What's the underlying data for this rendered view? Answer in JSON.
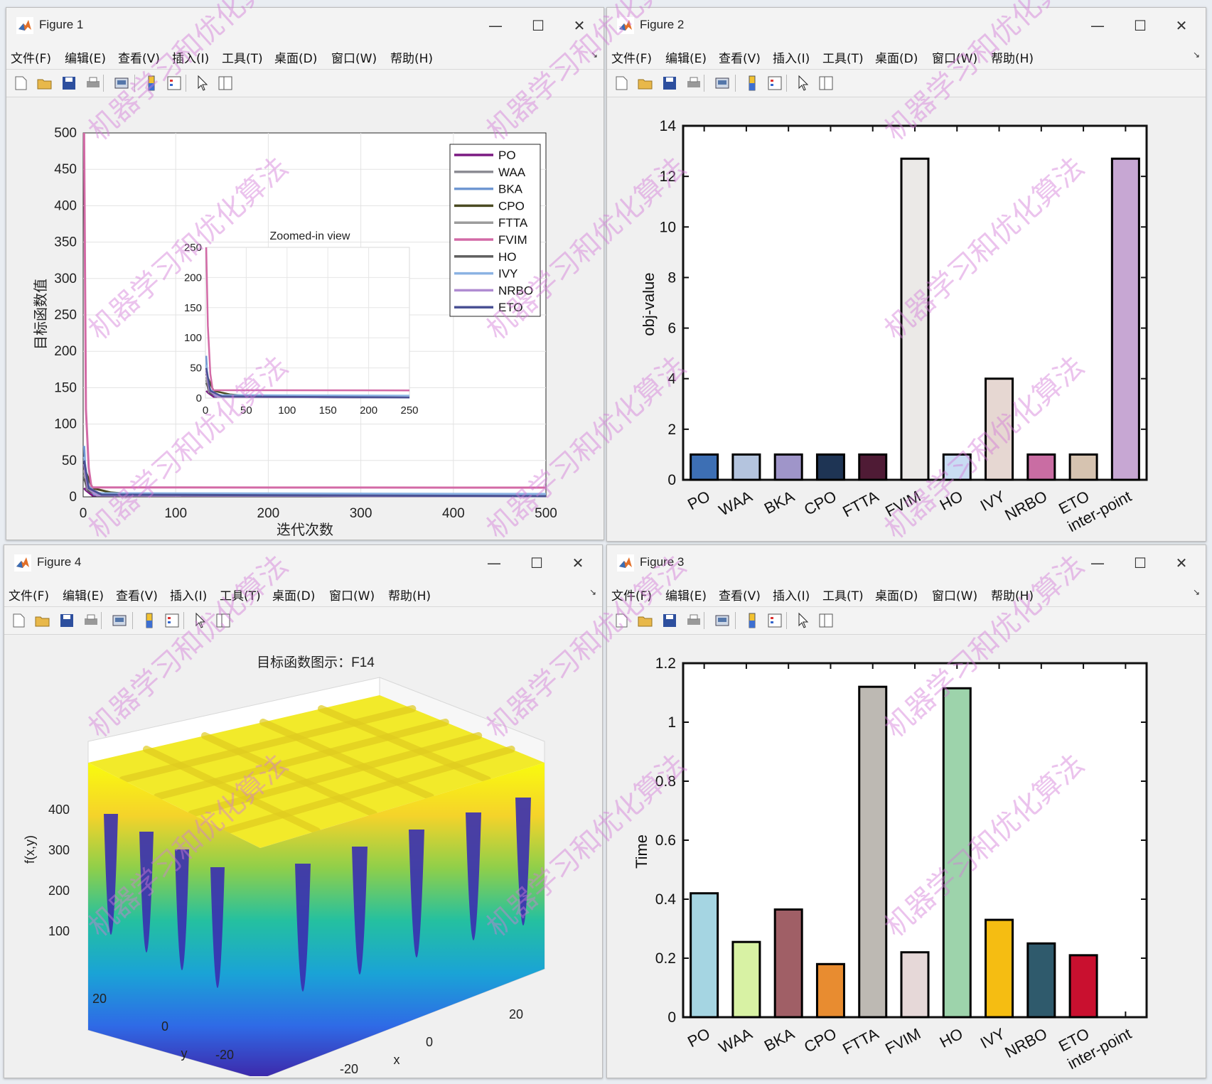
{
  "menu": [
    "文件(F)",
    "编辑(E)",
    "查看(V)",
    "插入(I)",
    "工具(T)",
    "桌面(D)",
    "窗口(W)",
    "帮助(H)"
  ],
  "window_controls": {
    "minimize": "—",
    "maximize": "☐",
    "close": "✕"
  },
  "watermark": "机器学习和优化算法",
  "fig1": {
    "title": "Figure 1",
    "chart_data": {
      "type": "line",
      "xlabel": "迭代次数",
      "ylabel": "目标函数值",
      "xlim": [
        0,
        500
      ],
      "ylim": [
        0,
        500
      ],
      "xticks": [
        "0",
        "100",
        "200",
        "300",
        "400",
        "500"
      ],
      "yticks": [
        "0",
        "50",
        "100",
        "150",
        "200",
        "250",
        "300",
        "350",
        "400",
        "450",
        "500"
      ],
      "grid": true,
      "legend_position": "top-right",
      "series": [
        {
          "name": "PO",
          "color": "#7b1a82",
          "points": [
            [
              1,
              12
            ],
            [
              3,
              9
            ],
            [
              10,
              2
            ],
            [
              500,
              1
            ]
          ]
        },
        {
          "name": "WAA",
          "color": "#8c8c93",
          "points": [
            [
              1,
              30
            ],
            [
              4,
              10
            ],
            [
              15,
              2
            ],
            [
              500,
              1
            ]
          ]
        },
        {
          "name": "BKA",
          "color": "#6f97d2",
          "points": [
            [
              1,
              70
            ],
            [
              3,
              20
            ],
            [
              12,
              3
            ],
            [
              500,
              1
            ]
          ]
        },
        {
          "name": "CPO",
          "color": "#4a4a22",
          "points": [
            [
              1,
              40
            ],
            [
              10,
              12
            ],
            [
              30,
              6
            ],
            [
              60,
              3
            ],
            [
              500,
              1
            ]
          ]
        },
        {
          "name": "FTTA",
          "color": "#9c9c9c",
          "points": [
            [
              1,
              35
            ],
            [
              5,
              10
            ],
            [
              20,
              3
            ],
            [
              500,
              1
            ]
          ]
        },
        {
          "name": "FVIM",
          "color": "#d36aa6",
          "points": [
            [
              1,
              500
            ],
            [
              3,
              120
            ],
            [
              6,
              40
            ],
            [
              9,
              13
            ],
            [
              500,
              12.7
            ]
          ]
        },
        {
          "name": "HO",
          "color": "#606060",
          "points": [
            [
              1,
              25
            ],
            [
              6,
              8
            ],
            [
              20,
              2
            ],
            [
              500,
              1
            ]
          ]
        },
        {
          "name": "IVY",
          "color": "#8bb3e3",
          "points": [
            [
              1,
              55
            ],
            [
              5,
              15
            ],
            [
              15,
              5
            ],
            [
              500,
              4
            ]
          ]
        },
        {
          "name": "NRBO",
          "color": "#b08cd2",
          "points": [
            [
              1,
              45
            ],
            [
              5,
              12
            ],
            [
              15,
              2
            ],
            [
              500,
              1
            ]
          ]
        },
        {
          "name": "ETO",
          "color": "#4a5194",
          "points": [
            [
              1,
              50
            ],
            [
              6,
              12
            ],
            [
              20,
              3
            ],
            [
              500,
              1
            ]
          ]
        }
      ],
      "inset": {
        "title": "Zoomed-in view",
        "xlim": [
          0,
          250
        ],
        "ylim": [
          0,
          250
        ],
        "xticks": [
          "0",
          "50",
          "100",
          "150",
          "200",
          "250"
        ],
        "yticks": [
          "0",
          "50",
          "100",
          "150",
          "200",
          "250"
        ]
      }
    }
  },
  "fig2": {
    "title": "Figure 2",
    "chart_data": {
      "type": "bar",
      "ylabel": "obj-value",
      "ylim": [
        0,
        14
      ],
      "yticks": [
        "0",
        "2",
        "4",
        "6",
        "8",
        "10",
        "12",
        "14"
      ],
      "categories": [
        "PO",
        "WAA",
        "BKA",
        "CPO",
        "FTTA",
        "FVIM",
        "HO",
        "IVY",
        "NRBO",
        "ETO",
        "inter-point"
      ],
      "values": [
        1,
        1,
        1,
        1,
        1,
        12.7,
        1,
        4,
        1,
        1,
        12.7
      ],
      "colors": [
        "#3d6fb4",
        "#b4c4de",
        "#9f95c9",
        "#1e3454",
        "#4f1b35",
        "#ebe9e7",
        "#c9dcf3",
        "#e6d7d2",
        "#c96da3",
        "#d6c3b0",
        "#c7a7d3"
      ]
    }
  },
  "fig3": {
    "title": "Figure 3",
    "chart_data": {
      "type": "bar",
      "ylabel": "Time",
      "ylim": [
        0,
        1.2
      ],
      "yticks": [
        "0",
        "0.2",
        "0.4",
        "0.6",
        "0.8",
        "1",
        "1.2"
      ],
      "categories": [
        "PO",
        "WAA",
        "BKA",
        "CPO",
        "FTTA",
        "FVIM",
        "HO",
        "IVY",
        "NRBO",
        "ETO",
        "inter-point"
      ],
      "values": [
        0.42,
        0.255,
        0.365,
        0.18,
        1.12,
        0.22,
        1.115,
        0.33,
        0.25,
        0.21,
        0
      ],
      "colors": [
        "#a5d5e2",
        "#d8f2a4",
        "#a05f66",
        "#e88c30",
        "#bdb9b3",
        "#e6d8d8",
        "#9dd3ab",
        "#f5bd12",
        "#2f5a6c",
        "#c9102f",
        "#ffffff"
      ]
    }
  },
  "fig4": {
    "title": "Figure 4",
    "chart_data": {
      "type": "surface",
      "title": "目标函数图示：F14",
      "xlabel": "x",
      "ylabel": "y",
      "zlabel": "f(x,y)",
      "xticks": [
        "-20",
        "0",
        "20"
      ],
      "yticks": [
        "-20",
        "0",
        "20"
      ],
      "zticks": [
        "100",
        "200",
        "300",
        "400"
      ],
      "grid_cells": 5,
      "colormap": [
        "#3e26a8",
        "#2f6ae6",
        "#1aa3d6",
        "#24c0a0",
        "#8fcf4a",
        "#f5d32a",
        "#f9fb0e"
      ]
    }
  }
}
